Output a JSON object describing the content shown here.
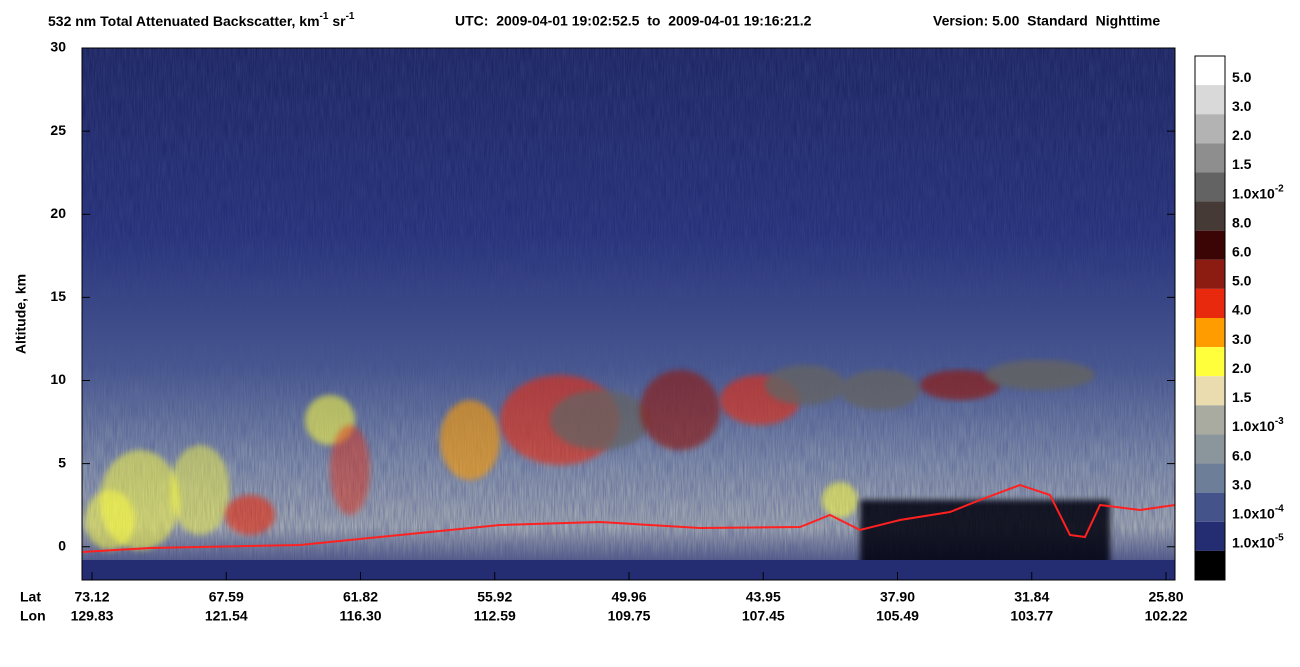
{
  "chart_data": {
    "type": "heatmap",
    "title_parts": [
      "532 nm Total Attenuated Backscatter, km",
      "-1",
      " sr",
      "-1"
    ],
    "utc": "UTC:  2009-04-01 19:02:52.5  to  2009-04-01 19:16:21.2",
    "version": "Version: 5.00  Standard  Nighttime",
    "ylabel": "Altitude, km",
    "ylim": [
      -2,
      30
    ],
    "yticks": [
      0,
      5,
      10,
      15,
      20,
      25,
      30
    ],
    "x_rows": [
      {
        "name": "Lat",
        "labels": [
          "73.12",
          "67.59",
          "61.82",
          "55.92",
          "49.96",
          "43.95",
          "37.90",
          "31.84",
          "25.80"
        ]
      },
      {
        "name": "Lon",
        "labels": [
          "129.83",
          "121.54",
          "116.30",
          "112.59",
          "109.75",
          "107.45",
          "105.49",
          "103.77",
          "102.22"
        ]
      }
    ],
    "colorbar": {
      "colors": [
        "#ffffff",
        "#d9d9d9",
        "#b3b3b3",
        "#8e8e8e",
        "#636363",
        "#463a36",
        "#3c0505",
        "#8c1b12",
        "#e8290e",
        "#ff9c00",
        "#ffff3c",
        "#eadcae",
        "#a9aba1",
        "#8a969c",
        "#6c7e98",
        "#44548a",
        "#242c72",
        "#000000"
      ],
      "labels": [
        {
          "text": "5.0"
        },
        {
          "text": "3.0"
        },
        {
          "text": "2.0"
        },
        {
          "text": "1.5"
        },
        {
          "text": "1.0x10",
          "sup": "-2"
        },
        {
          "text": "8.0"
        },
        {
          "text": "6.0"
        },
        {
          "text": "5.0"
        },
        {
          "text": "4.0"
        },
        {
          "text": "3.0"
        },
        {
          "text": "2.0"
        },
        {
          "text": "1.5"
        },
        {
          "text": "1.0x10",
          "sup": "-3"
        },
        {
          "text": "6.0"
        },
        {
          "text": "3.0"
        },
        {
          "text": "1.0x10",
          "sup": "-4"
        },
        {
          "text": "1.0x10",
          "sup": "-5"
        }
      ]
    }
  }
}
